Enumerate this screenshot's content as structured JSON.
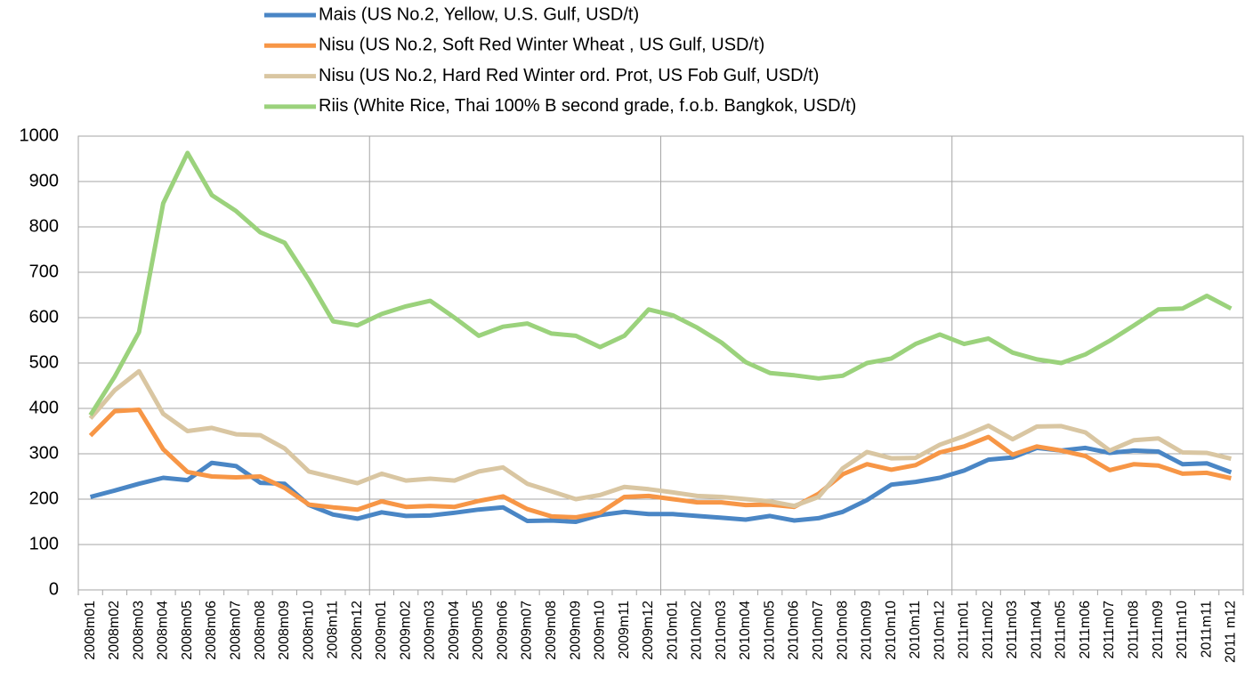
{
  "chart_data": {
    "type": "line",
    "categories": [
      "2008m01",
      "2008m02",
      "2008m03",
      "2008m04",
      "2008m05",
      "2008m06",
      "2008m07",
      "2008m08",
      "2008m09",
      "2008m10",
      "2008m11",
      "2008m12",
      "2009m01",
      "2009m02",
      "2009m03",
      "2009m04",
      "2009m05",
      "2009m06",
      "2009m07",
      "2009m08",
      "2009m09",
      "2009m10",
      "2009m11",
      "2009m12",
      "2010m01",
      "2010m02",
      "2010m03",
      "2010m04",
      "2010m05",
      "2010m06",
      "2010m07",
      "2010m08",
      "2010m09",
      "2010m10",
      "2010m11",
      "2010m12",
      "2011m01",
      "2011m02",
      "2011m03",
      "2011m04",
      "2011m05",
      "2011m06",
      "2011m07",
      "2011m08",
      "2011m09",
      "2011m10",
      "2011m11",
      "2011 m12"
    ],
    "series": [
      {
        "name": "Mais (US No.2, Yellow, U.S. Gulf, USD/t)",
        "color": "#4a86c5",
        "values": [
          205,
          219,
          234,
          247,
          242,
          280,
          273,
          236,
          234,
          187,
          166,
          157,
          171,
          163,
          164,
          170,
          177,
          182,
          152,
          153,
          150,
          165,
          172,
          167,
          167,
          163,
          159,
          155,
          163,
          153,
          158,
          172,
          198,
          232,
          238,
          247,
          263,
          287,
          292,
          313,
          307,
          313,
          302,
          307,
          305,
          277,
          279,
          259
        ]
      },
      {
        "name": "Nisu (US No.2, Soft Red Winter Wheat , US Gulf, USD/t)",
        "color": "#f79646",
        "values": [
          340,
          394,
          397,
          310,
          260,
          250,
          248,
          250,
          225,
          188,
          182,
          177,
          195,
          183,
          185,
          183,
          196,
          206,
          178,
          162,
          160,
          170,
          205,
          207,
          200,
          193,
          193,
          187,
          188,
          183,
          212,
          255,
          277,
          265,
          275,
          303,
          316,
          337,
          298,
          316,
          307,
          295,
          264,
          277,
          274,
          256,
          258,
          246
        ]
      },
      {
        "name": "Nisu (US No.2, Hard Red Winter ord. Prot, US Fob Gulf, USD/t)",
        "color": "#d9c6a2",
        "values": [
          378,
          440,
          482,
          388,
          350,
          357,
          343,
          341,
          312,
          261,
          248,
          235,
          256,
          241,
          245,
          241,
          261,
          270,
          234,
          217,
          200,
          209,
          227,
          222,
          215,
          207,
          205,
          200,
          195,
          185,
          205,
          268,
          304,
          290,
          291,
          320,
          339,
          362,
          332,
          360,
          361,
          347,
          307,
          330,
          334,
          303,
          302,
          289
        ]
      },
      {
        "name": "Riis (White Rice, Thai 100% B second grade, f.o.b. Bangkok, USD/t)",
        "color": "#9bd27c",
        "values": [
          385,
          470,
          568,
          852,
          963,
          870,
          835,
          788,
          765,
          683,
          592,
          583,
          608,
          625,
          637,
          600,
          560,
          580,
          587,
          565,
          560,
          535,
          560,
          618,
          605,
          578,
          545,
          502,
          478,
          473,
          466,
          472,
          500,
          510,
          542,
          563,
          542,
          554,
          523,
          508,
          500,
          519,
          549,
          583,
          618,
          620,
          648,
          620
        ]
      }
    ],
    "ylim": [
      0,
      1000
    ],
    "yticks": [
      0,
      100,
      200,
      300,
      400,
      500,
      600,
      700,
      800,
      900,
      1000
    ],
    "grid": true,
    "vertical_grid_every": 12,
    "legend": "top"
  }
}
